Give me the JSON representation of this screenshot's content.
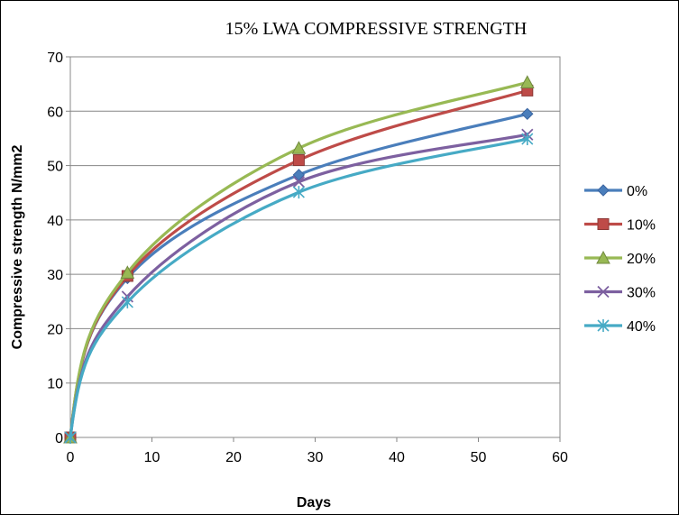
{
  "chart_data": {
    "type": "line",
    "title": "15% LWA COMPRESSIVE STRENGTH",
    "xlabel": "Days",
    "ylabel": "Compressive strength N/mm2",
    "xlim": [
      0,
      60
    ],
    "ylim": [
      0,
      70
    ],
    "xticks": [
      0,
      10,
      20,
      30,
      40,
      50,
      60
    ],
    "yticks": [
      0,
      10,
      20,
      30,
      40,
      50,
      60,
      70
    ],
    "grid": "horizontal",
    "legend_position": "right",
    "x": [
      0,
      7,
      28,
      56
    ],
    "series": [
      {
        "name": "0%",
        "values": [
          0,
          29.3,
          48.3,
          59.5
        ],
        "color": "#4A7EBB",
        "marker": "diamond"
      },
      {
        "name": "10%",
        "values": [
          0,
          29.7,
          51.0,
          63.8
        ],
        "color": "#BE4B48",
        "marker": "square"
      },
      {
        "name": "20%",
        "values": [
          0,
          30.3,
          53.2,
          65.3
        ],
        "color": "#98B954",
        "marker": "triangle"
      },
      {
        "name": "30%",
        "values": [
          0,
          25.9,
          47.0,
          55.7
        ],
        "color": "#7D60A0",
        "marker": "x"
      },
      {
        "name": "40%",
        "values": [
          0,
          24.9,
          45.1,
          54.9
        ],
        "color": "#46AAC5",
        "marker": "star"
      }
    ]
  }
}
